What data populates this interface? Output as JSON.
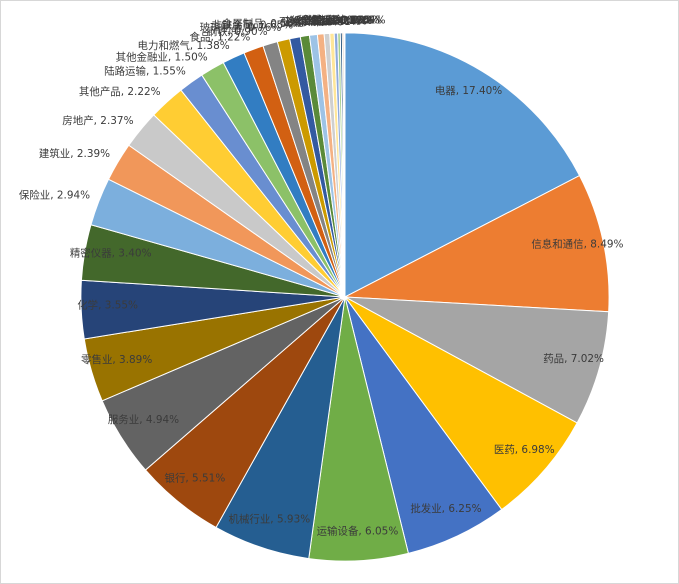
{
  "chart_data": {
    "type": "pie",
    "title": "",
    "unit": "%",
    "legend": "none",
    "start_angle_deg": 0,
    "direction": "clockwise",
    "label_format": "{name}, {value}%",
    "labels_position": "mixed-inside-outside",
    "inside_label_min_pct": 3.4,
    "background": "#ffffff",
    "frame_border_color": "#d7d7d7",
    "slices": [
      {
        "name": "电器",
        "value": 17.4
      },
      {
        "name": "信息和通信",
        "value": 8.49
      },
      {
        "name": "药品",
        "value": 7.02
      },
      {
        "name": "医药",
        "value": 6.98
      },
      {
        "name": "批发业",
        "value": 6.25
      },
      {
        "name": "运输设备",
        "value": 6.05
      },
      {
        "name": "机械行业",
        "value": 5.93
      },
      {
        "name": "银行",
        "value": 5.51
      },
      {
        "name": "服务业",
        "value": 4.94
      },
      {
        "name": "零售业",
        "value": 3.89
      },
      {
        "name": "化学",
        "value": 3.55
      },
      {
        "name": "精密仪器",
        "value": 3.4
      },
      {
        "name": "保险业",
        "value": 2.94
      },
      {
        "name": "建筑业",
        "value": 2.39
      },
      {
        "name": "房地产",
        "value": 2.37
      },
      {
        "name": "其他产品",
        "value": 2.22
      },
      {
        "name": "陆路运输",
        "value": 1.55
      },
      {
        "name": "其他金融业",
        "value": 1.5
      },
      {
        "name": "电力和燃气",
        "value": 1.38
      },
      {
        "name": "食品",
        "value": 1.22
      },
      {
        "name": "钢铁",
        "value": 0.9
      },
      {
        "name": "玻璃制品",
        "value": 0.76
      },
      {
        "name": "非铁金属",
        "value": 0.65
      },
      {
        "name": "金属制品",
        "value": 0.56
      },
      {
        "name": "证券",
        "value": 0.48
      },
      {
        "name": "石油和煤",
        "value": 0.41
      },
      {
        "name": "橡胶制品",
        "value": 0.34
      },
      {
        "name": "纸浆和纸",
        "value": 0.27
      },
      {
        "name": "海运",
        "value": 0.21
      },
      {
        "name": "纤维制品",
        "value": 0.16
      },
      {
        "name": "仓储运输",
        "value": 0.12
      },
      {
        "name": "矿业",
        "value": 0.08
      },
      {
        "name": "空运",
        "value": 0.04
      },
      {
        "name": "水产农林",
        "value": 0.04
      }
    ],
    "palette": [
      "#5B9BD5",
      "#ED7D31",
      "#A5A5A5",
      "#FFC000",
      "#4472C4",
      "#70AD47",
      "#255E91",
      "#9E480E",
      "#636363",
      "#997300",
      "#264478",
      "#43682B",
      "#7CAFDD",
      "#F1975A",
      "#C9C9C9",
      "#FFCD33",
      "#698ED0",
      "#8CC168",
      "#327DC2",
      "#D26012",
      "#848484",
      "#CC9A00",
      "#335AA1",
      "#5A8A39",
      "#9DC3E6",
      "#F4B183",
      "#CFCFCF",
      "#FFE699",
      "#8FAADC",
      "#A9D18E",
      "#1F4E79",
      "#843C0C",
      "#525252",
      "#7F6000"
    ]
  }
}
